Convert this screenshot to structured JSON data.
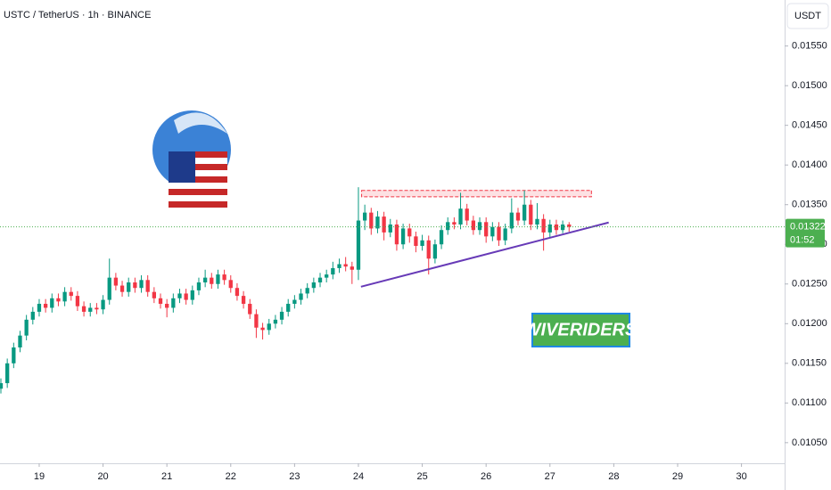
{
  "chart_data": {
    "type": "candlestick",
    "title": "USTC / TetherUS · 1h · BINANCE",
    "y_axis_label": "USDT",
    "up_color": "#089981",
    "down_color": "#f23645",
    "x": [
      18.4,
      18.5,
      18.6,
      18.7,
      18.8,
      18.9,
      19.0,
      19.1,
      19.2,
      19.3,
      19.4,
      19.5,
      19.6,
      19.7,
      19.8,
      19.9,
      20.0,
      20.1,
      20.2,
      20.3,
      20.4,
      20.5,
      20.6,
      20.7,
      20.8,
      20.9,
      21.0,
      21.1,
      21.2,
      21.3,
      21.4,
      21.5,
      21.6,
      21.7,
      21.8,
      21.9,
      22.0,
      22.1,
      22.2,
      22.3,
      22.4,
      22.5,
      22.6,
      22.7,
      22.8,
      22.9,
      23.0,
      23.1,
      23.2,
      23.3,
      23.4,
      23.5,
      23.6,
      23.7,
      23.8,
      23.9,
      24.0,
      24.1,
      24.2,
      24.3,
      24.4,
      24.5,
      24.6,
      24.7,
      24.8,
      24.9,
      25.0,
      25.1,
      25.2,
      25.3,
      25.4,
      25.5,
      25.6,
      25.7,
      25.8,
      25.9,
      26.0,
      26.1,
      26.2,
      26.3,
      26.4,
      26.5,
      26.6,
      26.7,
      26.8,
      26.9,
      27.0,
      27.1,
      27.2,
      27.3
    ],
    "open": [
      0.01118,
      0.01125,
      0.0115,
      0.0117,
      0.01185,
      0.01205,
      0.01215,
      0.01225,
      0.0122,
      0.01232,
      0.01228,
      0.0124,
      0.01235,
      0.01222,
      0.01215,
      0.0122,
      0.01218,
      0.0123,
      0.01258,
      0.01248,
      0.0124,
      0.01252,
      0.01245,
      0.01255,
      0.0124,
      0.01232,
      0.01225,
      0.0122,
      0.01232,
      0.01238,
      0.0123,
      0.01242,
      0.01252,
      0.01258,
      0.0125,
      0.01262,
      0.01255,
      0.01245,
      0.01235,
      0.01225,
      0.01212,
      0.01195,
      0.01192,
      0.012,
      0.01205,
      0.01215,
      0.01225,
      0.0123,
      0.01238,
      0.01245,
      0.01252,
      0.01258,
      0.01262,
      0.0127,
      0.01275,
      0.01272,
      0.01268,
      0.0133,
      0.0134,
      0.0132,
      0.01335,
      0.01315,
      0.01325,
      0.013,
      0.0132,
      0.0131,
      0.01298,
      0.01305,
      0.01282,
      0.013,
      0.01318,
      0.01328,
      0.01325,
      0.01345,
      0.0133,
      0.01318,
      0.01328,
      0.0131,
      0.01322,
      0.01305,
      0.0132,
      0.0134,
      0.0133,
      0.0135,
      0.01325,
      0.01332,
      0.01315,
      0.01325,
      0.01318,
      0.01325
    ],
    "high": [
      0.01131,
      0.01156,
      0.01176,
      0.01191,
      0.01211,
      0.01221,
      0.01231,
      0.01231,
      0.01238,
      0.01238,
      0.01246,
      0.01246,
      0.01241,
      0.01228,
      0.01226,
      0.01226,
      0.01236,
      0.01282,
      0.01264,
      0.01254,
      0.01258,
      0.01258,
      0.01261,
      0.01261,
      0.01246,
      0.01238,
      0.01231,
      0.01238,
      0.01244,
      0.01244,
      0.01248,
      0.01258,
      0.01268,
      0.01264,
      0.01268,
      0.01268,
      0.01261,
      0.01251,
      0.01241,
      0.01231,
      0.01218,
      0.01201,
      0.01206,
      0.01211,
      0.01221,
      0.01231,
      0.01236,
      0.01244,
      0.01251,
      0.01258,
      0.01264,
      0.01268,
      0.01278,
      0.01282,
      0.01284,
      0.01278,
      0.01372,
      0.0135,
      0.01346,
      0.01342,
      0.01341,
      0.01332,
      0.01331,
      0.01326,
      0.01326,
      0.01316,
      0.01312,
      0.01311,
      0.01306,
      0.01324,
      0.01334,
      0.01334,
      0.01365,
      0.01351,
      0.01336,
      0.01334,
      0.01334,
      0.01328,
      0.01328,
      0.01326,
      0.01358,
      0.01346,
      0.01368,
      0.01356,
      0.01352,
      0.01338,
      0.01331,
      0.01331,
      0.0133,
      0.01328
    ],
    "low": [
      0.01112,
      0.01119,
      0.01144,
      0.01164,
      0.01179,
      0.01199,
      0.01209,
      0.01214,
      0.01214,
      0.01222,
      0.01222,
      0.01229,
      0.01216,
      0.01209,
      0.01209,
      0.01212,
      0.01212,
      0.01224,
      0.01242,
      0.01234,
      0.01234,
      0.01239,
      0.01239,
      0.01234,
      0.01226,
      0.01219,
      0.01208,
      0.01214,
      0.01226,
      0.01224,
      0.01224,
      0.01236,
      0.01246,
      0.01244,
      0.01244,
      0.01249,
      0.01239,
      0.01229,
      0.01219,
      0.01206,
      0.01182,
      0.0118,
      0.01186,
      0.01194,
      0.01199,
      0.01209,
      0.01219,
      0.01224,
      0.01232,
      0.01239,
      0.01246,
      0.01252,
      0.01256,
      0.01264,
      0.01266,
      0.0125,
      0.01255,
      0.01318,
      0.01312,
      0.01314,
      0.01305,
      0.01309,
      0.01292,
      0.01294,
      0.01302,
      0.0129,
      0.01292,
      0.01262,
      0.01276,
      0.01294,
      0.01312,
      0.01319,
      0.01319,
      0.01324,
      0.01312,
      0.01312,
      0.01302,
      0.01304,
      0.01298,
      0.01299,
      0.01314,
      0.01324,
      0.01324,
      0.01318,
      0.01319,
      0.01292,
      0.01309,
      0.01312,
      0.01314,
      0.01316
    ],
    "close": [
      0.01125,
      0.0115,
      0.0117,
      0.01185,
      0.01205,
      0.01215,
      0.01225,
      0.0122,
      0.01232,
      0.01228,
      0.0124,
      0.01235,
      0.01222,
      0.01215,
      0.0122,
      0.01218,
      0.0123,
      0.01258,
      0.01248,
      0.0124,
      0.01252,
      0.01245,
      0.01255,
      0.0124,
      0.01232,
      0.01225,
      0.0122,
      0.01232,
      0.01238,
      0.0123,
      0.01242,
      0.01252,
      0.01258,
      0.0125,
      0.01262,
      0.01255,
      0.01245,
      0.01235,
      0.01225,
      0.01212,
      0.01195,
      0.01192,
      0.012,
      0.01205,
      0.01215,
      0.01225,
      0.0123,
      0.01238,
      0.01245,
      0.01252,
      0.01258,
      0.01262,
      0.0127,
      0.01275,
      0.01272,
      0.01268,
      0.0133,
      0.0134,
      0.0132,
      0.01335,
      0.01315,
      0.01325,
      0.013,
      0.0132,
      0.0131,
      0.01298,
      0.01305,
      0.01282,
      0.013,
      0.01318,
      0.01328,
      0.01325,
      0.01345,
      0.0133,
      0.01318,
      0.01328,
      0.0131,
      0.01322,
      0.01305,
      0.0132,
      0.0134,
      0.0133,
      0.0135,
      0.01325,
      0.01332,
      0.01315,
      0.01325,
      0.01318,
      0.01325,
      0.01322
    ],
    "xlim": [
      18.386,
      30.676
    ],
    "xticks": [
      19,
      20,
      21,
      22,
      23,
      24,
      25,
      26,
      27,
      28,
      29,
      30
    ],
    "ylim": [
      0.01024,
      0.01608
    ],
    "yticks": [
      {
        "value": 0.0105,
        "label": "0.01050"
      },
      {
        "value": 0.011,
        "label": "0.01100"
      },
      {
        "value": 0.0115,
        "label": "0.01150"
      },
      {
        "value": 0.012,
        "label": "0.01200"
      },
      {
        "value": 0.0125,
        "label": "0.01250"
      },
      {
        "value": 0.013,
        "label": "0.01300"
      },
      {
        "value": 0.0135,
        "label": "0.01350"
      },
      {
        "value": 0.014,
        "label": "0.01400"
      },
      {
        "value": 0.0145,
        "label": "0.01450"
      },
      {
        "value": 0.015,
        "label": "0.01500"
      },
      {
        "value": 0.0155,
        "label": "0.01550"
      }
    ],
    "last_price": {
      "value": 0.01322,
      "label": "0.01322",
      "countdown": "01:52",
      "color": "#4caf50"
    },
    "resistance": {
      "x": [
        24.05,
        27.65
      ],
      "y": [
        0.0136,
        0.01368
      ],
      "color": "#f23645"
    },
    "trendline": {
      "x": [
        24.04,
        27.92
      ],
      "y": [
        0.012466,
        0.013275
      ],
      "color": "#673ab7"
    },
    "watermark": "WIVERIDERS"
  }
}
